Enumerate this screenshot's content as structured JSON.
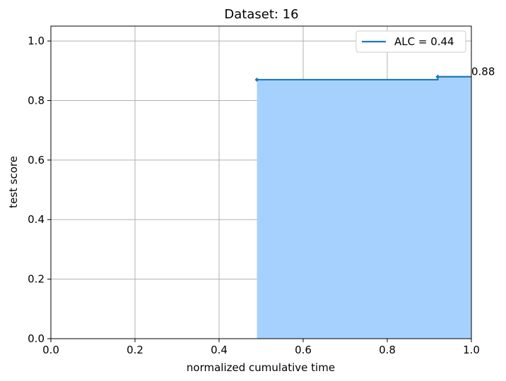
{
  "chart_data": {
    "type": "area",
    "title": "Dataset: 16",
    "xlabel": "normalized cumulative time",
    "ylabel": "test score",
    "xlim": [
      0.0,
      1.0
    ],
    "ylim": [
      0.0,
      1.05
    ],
    "grid": true,
    "legend_position": "top-right",
    "x_ticks": [
      "0.0",
      "0.2",
      "0.4",
      "0.6",
      "0.8",
      "1.0"
    ],
    "y_ticks": [
      "0.0",
      "0.2",
      "0.4",
      "0.6",
      "0.8",
      "1.0"
    ],
    "series": [
      {
        "name": "ALC = 0.44",
        "step": true,
        "points": [
          {
            "x": 0.49,
            "y": 0.87
          },
          {
            "x": 0.92,
            "y": 0.88
          }
        ],
        "end_x": 1.0
      }
    ],
    "annotations": [
      {
        "text": "0.88",
        "x": 1.0,
        "y": 0.88
      }
    ],
    "colors": {
      "line": "#1f77b4",
      "fill": "#a6d1fe",
      "grid": "#b0b0b0"
    }
  }
}
